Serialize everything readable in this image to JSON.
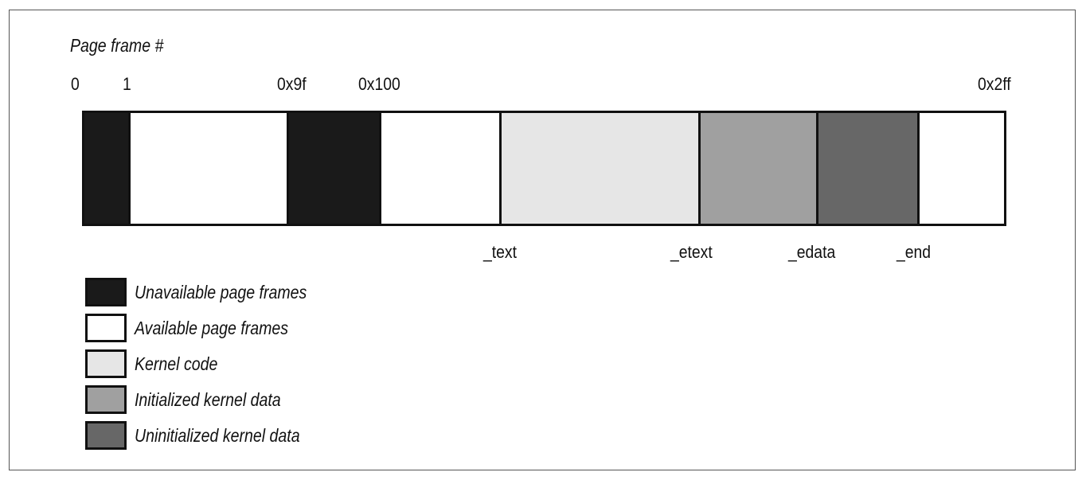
{
  "title": "Page frame #",
  "ticks": [
    "0",
    "1",
    "0x9f",
    "0x100",
    "0x2ff"
  ],
  "segments": [
    {
      "name": "unavailable-frame-0",
      "kind": "unavailable",
      "color": "#1a1a1a"
    },
    {
      "name": "available-frames-low",
      "kind": "available",
      "color": "#ffffff"
    },
    {
      "name": "unavailable-frames-bios",
      "kind": "unavailable",
      "color": "#1a1a1a"
    },
    {
      "name": "available-frames-before-kernel",
      "kind": "available",
      "color": "#ffffff"
    },
    {
      "name": "kernel-code",
      "kind": "kernel-code",
      "color": "#e6e6e6"
    },
    {
      "name": "initialized-kernel-data",
      "kind": "initialized",
      "color": "#a0a0a0"
    },
    {
      "name": "uninitialized-kernel-data",
      "kind": "uninitialized",
      "color": "#676767"
    },
    {
      "name": "available-frames-high",
      "kind": "available",
      "color": "#ffffff"
    }
  ],
  "markers": [
    "_text",
    "_etext",
    "_edata",
    "_end"
  ],
  "legend": [
    {
      "label": "Unavailable page frames",
      "color": "#1a1a1a"
    },
    {
      "label": "Available page frames",
      "color": "#ffffff"
    },
    {
      "label": "Kernel code",
      "color": "#e6e6e6"
    },
    {
      "label": "Initialized kernel data",
      "color": "#a0a0a0"
    },
    {
      "label": "Uninitialized kernel data",
      "color": "#676767"
    }
  ]
}
